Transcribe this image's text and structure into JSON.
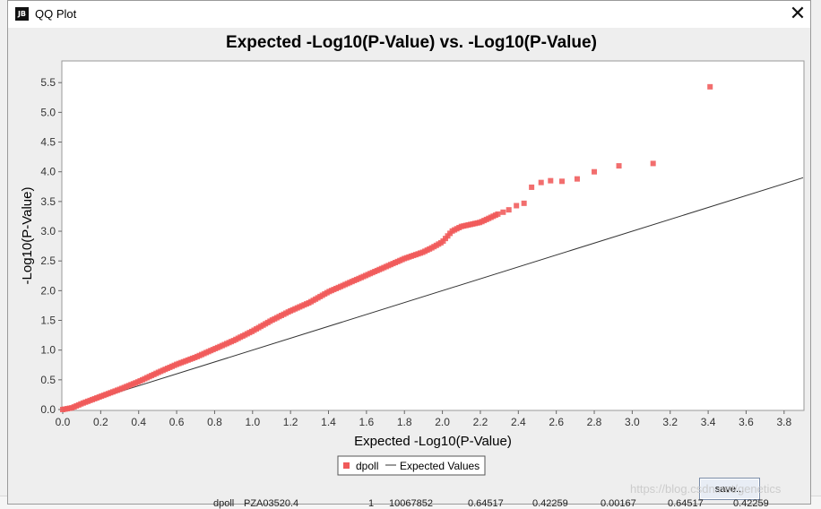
{
  "window": {
    "title": "QQ Plot",
    "icon_label": "JB",
    "close_glyph": "✕",
    "save_label": "save..."
  },
  "watermark": "https://blog.csdn.net/genetics",
  "background": {
    "row_fragments": [
      "dpoll",
      "PZA03520.4",
      "1",
      "10067852",
      "0.64517",
      "0.42259",
      "0.00167",
      "0.64517",
      "0.42259"
    ]
  },
  "colors": {
    "points": "#f05a5a",
    "expected_line": "#333333",
    "plot_bg": "#ffffff",
    "grid": "#d0d0d0"
  },
  "chart_data": {
    "type": "scatter",
    "title": "Expected -Log10(P-Value) vs. -Log10(P-Value)",
    "xlabel": "Expected -Log10(P-Value)",
    "ylabel": "-Log10(P-Value)",
    "xlim": [
      0.0,
      3.9
    ],
    "ylim": [
      0.0,
      5.85
    ],
    "xticks": [
      "0.0",
      "0.2",
      "0.4",
      "0.6",
      "0.8",
      "1.0",
      "1.2",
      "1.4",
      "1.6",
      "1.8",
      "2.0",
      "2.2",
      "2.4",
      "2.6",
      "2.8",
      "3.0",
      "3.2",
      "3.4",
      "3.6",
      "3.8"
    ],
    "yticks": [
      "0.0",
      "0.5",
      "1.0",
      "1.5",
      "2.0",
      "2.5",
      "3.0",
      "3.5",
      "4.0",
      "4.5",
      "5.0",
      "5.5"
    ],
    "grid": false,
    "legend_position": "bottom",
    "series": [
      {
        "name": "dpoll",
        "kind": "points",
        "curve": [
          [
            0.0,
            0.0
          ],
          [
            0.05,
            0.03
          ],
          [
            0.1,
            0.1
          ],
          [
            0.2,
            0.22
          ],
          [
            0.3,
            0.34
          ],
          [
            0.4,
            0.47
          ],
          [
            0.5,
            0.62
          ],
          [
            0.6,
            0.76
          ],
          [
            0.7,
            0.88
          ],
          [
            0.8,
            1.02
          ],
          [
            0.9,
            1.16
          ],
          [
            1.0,
            1.32
          ],
          [
            1.1,
            1.5
          ],
          [
            1.2,
            1.66
          ],
          [
            1.3,
            1.8
          ],
          [
            1.4,
            1.98
          ],
          [
            1.5,
            2.12
          ],
          [
            1.6,
            2.26
          ],
          [
            1.7,
            2.4
          ],
          [
            1.8,
            2.54
          ],
          [
            1.9,
            2.65
          ],
          [
            1.95,
            2.73
          ],
          [
            2.0,
            2.82
          ],
          [
            2.05,
            3.0
          ],
          [
            2.1,
            3.08
          ],
          [
            2.2,
            3.15
          ],
          [
            2.3,
            3.3
          ]
        ],
        "tail": [
          [
            2.32,
            3.32
          ],
          [
            2.35,
            3.36
          ],
          [
            2.39,
            3.43
          ],
          [
            2.43,
            3.47
          ],
          [
            2.47,
            3.74
          ],
          [
            2.52,
            3.82
          ],
          [
            2.57,
            3.85
          ],
          [
            2.63,
            3.84
          ],
          [
            2.71,
            3.88
          ],
          [
            2.8,
            4.0
          ],
          [
            2.93,
            4.1
          ],
          [
            3.11,
            4.14
          ],
          [
            3.41,
            5.43
          ]
        ]
      },
      {
        "name": "Expected Values",
        "kind": "line",
        "points": [
          [
            0.0,
            0.0
          ],
          [
            3.9,
            3.9
          ]
        ]
      }
    ]
  }
}
